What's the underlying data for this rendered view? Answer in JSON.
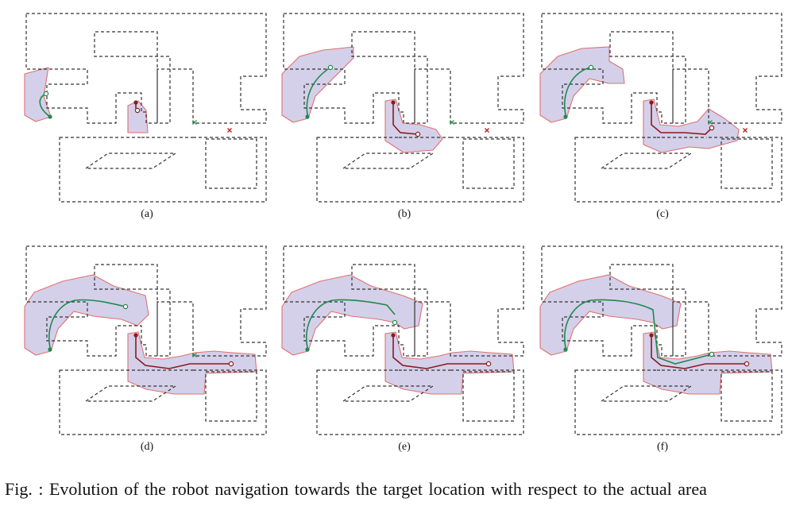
{
  "figure": {
    "panels": [
      {
        "id": "a",
        "label": "(a)"
      },
      {
        "id": "b",
        "label": "(b)"
      },
      {
        "id": "c",
        "label": "(c)"
      },
      {
        "id": "d",
        "label": "(d)"
      },
      {
        "id": "e",
        "label": "(e)"
      },
      {
        "id": "f",
        "label": "(f)"
      }
    ],
    "caption": "Fig.  : Evolution of the robot navigation towards the target location with respect to the actual area"
  },
  "colors": {
    "wall": "#333333",
    "region_fill": "#d4d0ea",
    "region_edge": "#e07070",
    "robot_green": "#1f8a4c",
    "robot_red": "#8b1a1a",
    "target_green": "#2e9a50",
    "target_red": "#b22222"
  }
}
